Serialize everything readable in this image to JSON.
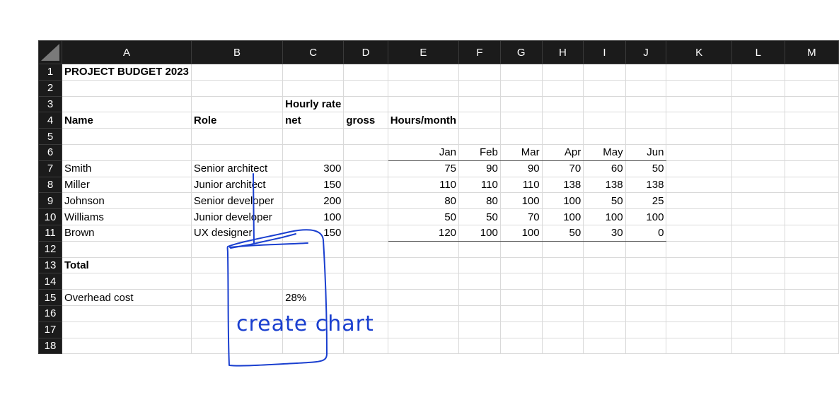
{
  "columns": [
    "A",
    "B",
    "C",
    "D",
    "E",
    "F",
    "G",
    "H",
    "I",
    "J",
    "K",
    "L",
    "M"
  ],
  "rows": [
    "1",
    "2",
    "3",
    "4",
    "5",
    "6",
    "7",
    "8",
    "9",
    "10",
    "11",
    "12",
    "13",
    "14",
    "15",
    "16",
    "17",
    "18"
  ],
  "cells": {
    "title": "PROJECT BUDGET 2023",
    "hourly_rate": "Hourly rate",
    "name_header": "Name",
    "role_header": "Role",
    "net_header": "net",
    "gross_header": "gross",
    "hours_header": "Hours/month",
    "months": [
      "Jan",
      "Feb",
      "Mar",
      "Apr",
      "May",
      "Jun"
    ],
    "people": [
      {
        "name": "Smith",
        "role": "Senior architect",
        "net": "300",
        "hours": [
          "75",
          "90",
          "90",
          "70",
          "60",
          "50"
        ]
      },
      {
        "name": "Miller",
        "role": "Junior architect",
        "net": "150",
        "hours": [
          "110",
          "110",
          "110",
          "138",
          "138",
          "138"
        ]
      },
      {
        "name": "Johnson",
        "role": "Senior developer",
        "net": "200",
        "hours": [
          "80",
          "80",
          "100",
          "100",
          "50",
          "25"
        ]
      },
      {
        "name": "Williams",
        "role": "Junior developer",
        "net": "100",
        "hours": [
          "50",
          "50",
          "70",
          "100",
          "100",
          "100"
        ]
      },
      {
        "name": "Brown",
        "role": "UX designer",
        "net": "150",
        "hours": [
          "120",
          "100",
          "100",
          "50",
          "30",
          "0"
        ]
      }
    ],
    "total_label": "Total",
    "overhead_label": "Overhead cost",
    "overhead_value": "28%"
  },
  "annotation": {
    "text": "create chart",
    "ink_color": "#1a3fcf"
  }
}
